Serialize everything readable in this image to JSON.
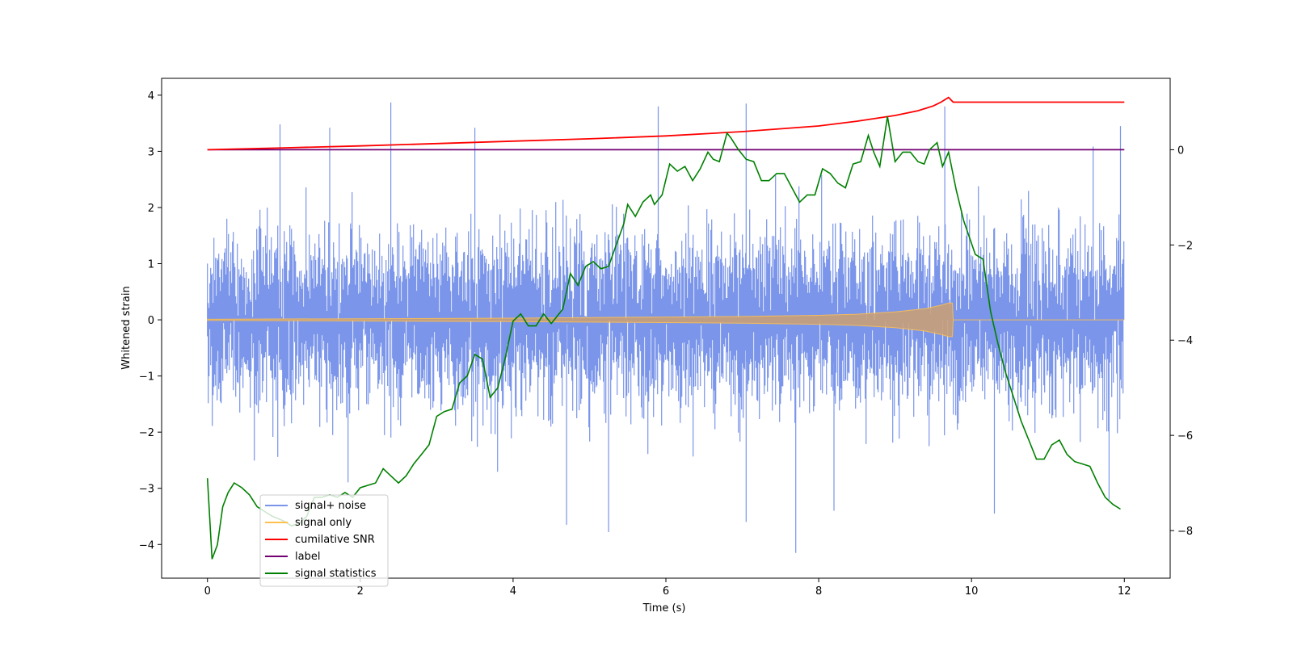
{
  "chart_data": {
    "type": "line",
    "title": "",
    "xlabel": "Time (s)",
    "ylabel": "Whitened strain",
    "ylabel_right": "",
    "xlim": [
      -0.6,
      12.6
    ],
    "ylim": [
      -4.6,
      4.3
    ],
    "ylim_right": [
      -9.0,
      1.5
    ],
    "xticks": [
      0,
      2,
      4,
      6,
      8,
      10,
      12
    ],
    "xtick_labels": [
      "0",
      "2",
      "4",
      "6",
      "8",
      "10",
      "12"
    ],
    "yticks": [
      -4,
      -3,
      -2,
      -1,
      0,
      1,
      2,
      3,
      4
    ],
    "ytick_labels": [
      "−4",
      "−3",
      "−2",
      "−1",
      "0",
      "1",
      "2",
      "3",
      "4"
    ],
    "yticks_right": [
      -8,
      -6,
      -4,
      -2,
      0
    ],
    "ytick_labels_right": [
      "−8",
      "−6",
      "−4",
      "−2",
      "0"
    ],
    "grid": false,
    "legend_position": "lower-left",
    "series": [
      {
        "name": "signal+ noise",
        "axis": "left",
        "color": "#6f8ce8",
        "style": "dense noise, approx. uniform std 0.75 from t=0 to t=12, peaks up to 3.87 and down to -4.15",
        "spikes": [
          [
            0.95,
            3.48
          ],
          [
            1.6,
            3.42
          ],
          [
            2.4,
            3.87
          ],
          [
            3.5,
            3.42
          ],
          [
            5.9,
            3.8
          ],
          [
            7.05,
            3.85
          ],
          [
            9.65,
            3.8
          ],
          [
            11.95,
            3.45
          ],
          [
            4.7,
            -3.65
          ],
          [
            5.25,
            -3.78
          ],
          [
            7.05,
            -3.6
          ],
          [
            7.7,
            -4.15
          ],
          [
            8.2,
            -3.4
          ],
          [
            10.3,
            -3.45
          ],
          [
            11.8,
            -3.2
          ]
        ]
      },
      {
        "name": "signal only",
        "axis": "left",
        "color": "#ffc04d",
        "envelope": [
          [
            0,
            0.01
          ],
          [
            2,
            0.02
          ],
          [
            4,
            0.03
          ],
          [
            6,
            0.05
          ],
          [
            7,
            0.06
          ],
          [
            8,
            0.08
          ],
          [
            8.5,
            0.1
          ],
          [
            9,
            0.14
          ],
          [
            9.4,
            0.2
          ],
          [
            9.6,
            0.26
          ],
          [
            9.7,
            0.3
          ],
          [
            9.75,
            0.3
          ],
          [
            9.76,
            0.0
          ],
          [
            12,
            0.0
          ]
        ]
      },
      {
        "name": "cumilative SNR",
        "axis": "right",
        "color": "#ff0000",
        "points": [
          [
            0,
            0.0
          ],
          [
            1,
            0.04
          ],
          [
            2,
            0.08
          ],
          [
            3,
            0.13
          ],
          [
            4,
            0.18
          ],
          [
            5,
            0.23
          ],
          [
            6,
            0.29
          ],
          [
            7,
            0.38
          ],
          [
            8,
            0.5
          ],
          [
            8.5,
            0.6
          ],
          [
            9,
            0.72
          ],
          [
            9.3,
            0.82
          ],
          [
            9.5,
            0.92
          ],
          [
            9.6,
            1.0
          ],
          [
            9.7,
            1.1
          ],
          [
            9.76,
            1.0
          ],
          [
            9.77,
            1.0
          ],
          [
            12,
            1.0
          ]
        ]
      },
      {
        "name": "label",
        "axis": "right",
        "color": "#730073",
        "points": [
          [
            0,
            0.0
          ],
          [
            12,
            0.0
          ]
        ]
      },
      {
        "name": "signal statistics",
        "axis": "right",
        "color": "#008000",
        "points": [
          [
            0.0,
            -6.9
          ],
          [
            0.06,
            -8.6
          ],
          [
            0.13,
            -8.3
          ],
          [
            0.2,
            -7.5
          ],
          [
            0.27,
            -7.2
          ],
          [
            0.35,
            -7.0
          ],
          [
            0.45,
            -7.1
          ],
          [
            0.55,
            -7.25
          ],
          [
            0.65,
            -7.5
          ],
          [
            0.75,
            -7.6
          ],
          [
            0.85,
            -7.7
          ],
          [
            1.0,
            -7.8
          ],
          [
            1.1,
            -7.9
          ],
          [
            1.2,
            -7.85
          ],
          [
            1.3,
            -7.7
          ],
          [
            1.4,
            -7.3
          ],
          [
            1.5,
            -7.3
          ],
          [
            1.6,
            -7.25
          ],
          [
            1.7,
            -7.3
          ],
          [
            1.8,
            -7.2
          ],
          [
            1.9,
            -7.3
          ],
          [
            2.0,
            -7.1
          ],
          [
            2.1,
            -7.05
          ],
          [
            2.2,
            -7.0
          ],
          [
            2.3,
            -6.7
          ],
          [
            2.4,
            -6.85
          ],
          [
            2.5,
            -7.0
          ],
          [
            2.6,
            -6.85
          ],
          [
            2.7,
            -6.6
          ],
          [
            2.8,
            -6.4
          ],
          [
            2.9,
            -6.2
          ],
          [
            3.0,
            -5.6
          ],
          [
            3.1,
            -5.5
          ],
          [
            3.2,
            -5.45
          ],
          [
            3.3,
            -4.9
          ],
          [
            3.4,
            -4.75
          ],
          [
            3.5,
            -4.3
          ],
          [
            3.6,
            -4.4
          ],
          [
            3.7,
            -5.2
          ],
          [
            3.8,
            -5.0
          ],
          [
            3.9,
            -4.35
          ],
          [
            4.0,
            -3.6
          ],
          [
            4.1,
            -3.45
          ],
          [
            4.2,
            -3.7
          ],
          [
            4.3,
            -3.7
          ],
          [
            4.4,
            -3.45
          ],
          [
            4.5,
            -3.65
          ],
          [
            4.55,
            -3.55
          ],
          [
            4.65,
            -3.35
          ],
          [
            4.75,
            -2.6
          ],
          [
            4.85,
            -2.85
          ],
          [
            4.95,
            -2.45
          ],
          [
            5.05,
            -2.35
          ],
          [
            5.15,
            -2.5
          ],
          [
            5.25,
            -2.45
          ],
          [
            5.35,
            -2.0
          ],
          [
            5.45,
            -1.55
          ],
          [
            5.5,
            -1.15
          ],
          [
            5.6,
            -1.4
          ],
          [
            5.7,
            -1.1
          ],
          [
            5.8,
            -0.95
          ],
          [
            5.85,
            -1.15
          ],
          [
            5.95,
            -0.95
          ],
          [
            6.05,
            -0.3
          ],
          [
            6.15,
            -0.45
          ],
          [
            6.25,
            -0.35
          ],
          [
            6.35,
            -0.65
          ],
          [
            6.45,
            -0.4
          ],
          [
            6.55,
            -0.05
          ],
          [
            6.62,
            -0.2
          ],
          [
            6.7,
            -0.25
          ],
          [
            6.8,
            0.35
          ],
          [
            6.85,
            0.25
          ],
          [
            6.95,
            0.0
          ],
          [
            7.05,
            -0.2
          ],
          [
            7.15,
            -0.25
          ],
          [
            7.25,
            -0.65
          ],
          [
            7.35,
            -0.65
          ],
          [
            7.45,
            -0.5
          ],
          [
            7.55,
            -0.5
          ],
          [
            7.65,
            -0.8
          ],
          [
            7.75,
            -1.1
          ],
          [
            7.85,
            -0.95
          ],
          [
            7.95,
            -0.95
          ],
          [
            8.05,
            -0.4
          ],
          [
            8.15,
            -0.5
          ],
          [
            8.25,
            -0.7
          ],
          [
            8.35,
            -0.8
          ],
          [
            8.45,
            -0.3
          ],
          [
            8.55,
            -0.25
          ],
          [
            8.65,
            0.3
          ],
          [
            8.72,
            -0.05
          ],
          [
            8.8,
            -0.35
          ],
          [
            8.9,
            0.7
          ],
          [
            9.0,
            -0.25
          ],
          [
            9.1,
            -0.05
          ],
          [
            9.2,
            -0.05
          ],
          [
            9.3,
            -0.25
          ],
          [
            9.38,
            -0.3
          ],
          [
            9.45,
            -0.0
          ],
          [
            9.55,
            0.15
          ],
          [
            9.62,
            -0.35
          ],
          [
            9.7,
            -0.05
          ],
          [
            9.8,
            -0.85
          ],
          [
            9.9,
            -1.5
          ],
          [
            10.05,
            -2.2
          ],
          [
            10.15,
            -2.3
          ],
          [
            10.25,
            -3.4
          ],
          [
            10.35,
            -4.1
          ],
          [
            10.45,
            -4.7
          ],
          [
            10.55,
            -5.2
          ],
          [
            10.65,
            -5.7
          ],
          [
            10.75,
            -6.1
          ],
          [
            10.85,
            -6.5
          ],
          [
            10.95,
            -6.5
          ],
          [
            11.05,
            -6.2
          ],
          [
            11.15,
            -6.1
          ],
          [
            11.25,
            -6.4
          ],
          [
            11.35,
            -6.55
          ],
          [
            11.45,
            -6.6
          ],
          [
            11.55,
            -6.65
          ],
          [
            11.65,
            -7.0
          ],
          [
            11.75,
            -7.3
          ],
          [
            11.85,
            -7.45
          ],
          [
            11.95,
            -7.55
          ]
        ]
      }
    ]
  }
}
